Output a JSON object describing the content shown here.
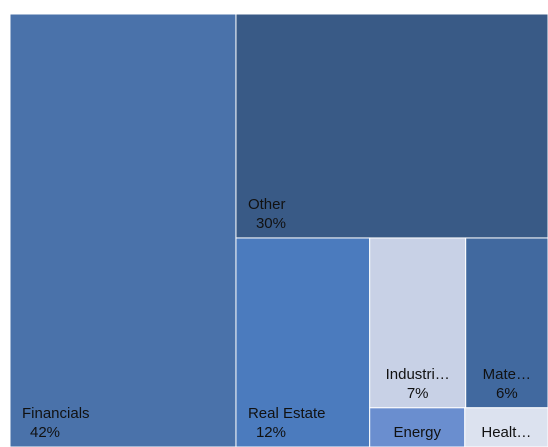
{
  "chart_data": {
    "type": "treemap",
    "categories": [
      "Financials",
      "Other",
      "Real Estate",
      "Industri…",
      "Mate…",
      "Energy",
      "Healt…"
    ],
    "values": [
      42,
      30,
      12,
      7,
      6,
      1.6,
      1.4
    ],
    "value_labels": [
      "42%",
      "30%",
      "12%",
      "7%",
      "6%",
      null,
      null
    ],
    "colors": [
      "#4a72aa",
      "#395a86",
      "#4b7bbe",
      "#c8d1e6",
      "#41699f",
      "#6a8ecf",
      "#dce2ef"
    ]
  }
}
